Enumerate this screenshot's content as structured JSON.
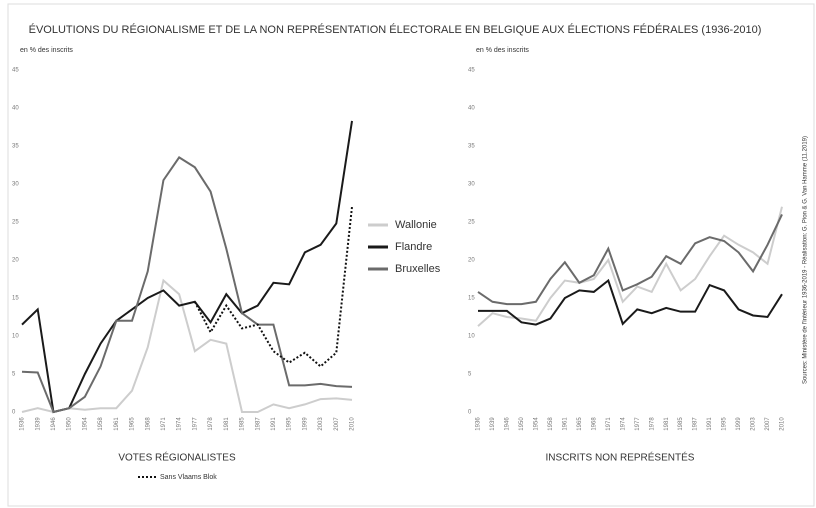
{
  "title": "ÉVOLUTIONS DU RÉGIONALISME ET DE LA NON REPRÉSENTATION ÉLECTORALE EN BELGIQUE AUX ÉLECTIONS FÉDÉRALES (1936-2010)",
  "source": "Sources: Ministère de l'Intérieur 1936-2019 - Réalisation: G. Pion & G. Van Hamme (11.2019)",
  "chart_data": [
    {
      "type": "line",
      "title": "VOTES RÉGIONALISTES",
      "y_label": "en % des inscrits",
      "categories": [
        "1936",
        "1939",
        "1946",
        "1950",
        "1954",
        "1958",
        "1961",
        "1965",
        "1968",
        "1971",
        "1974",
        "1977",
        "1978",
        "1981",
        "1985",
        "1987",
        "1991",
        "1995",
        "1999",
        "2003",
        "2007",
        "2010"
      ],
      "ylim": [
        0,
        45
      ],
      "yticks": [
        0,
        5,
        10,
        15,
        20,
        25,
        30,
        35,
        40,
        45
      ],
      "series": [
        {
          "name": "Wallonie",
          "color": "#cdcdcd",
          "values": [
            0,
            0.5,
            0,
            0.5,
            0.3,
            0.5,
            0.5,
            2.8,
            8.5,
            17.3,
            15.5,
            8,
            9.5,
            9,
            0,
            0,
            1,
            0.5,
            1,
            1.7,
            1.8,
            1.6
          ]
        },
        {
          "name": "Flandre",
          "color": "#1a1a1a",
          "values": [
            11.5,
            13.5,
            0,
            0.5,
            5,
            9,
            12,
            13.5,
            15,
            16,
            14,
            14.5,
            11.8,
            15.5,
            13,
            14,
            17,
            16.8,
            21,
            22,
            24.8,
            38.3
          ]
        },
        {
          "name": "Bruxelles",
          "color": "#6b6b6b",
          "values": [
            5.3,
            5.2,
            0,
            0.5,
            2,
            6,
            12,
            12,
            18.5,
            30.5,
            33.5,
            32.2,
            29,
            21.5,
            13,
            11.5,
            11.5,
            3.5,
            3.5,
            3.7,
            3.4,
            3.3
          ]
        },
        {
          "name": "Sans Vlaams Blok",
          "color": "#111111",
          "dash": "2,2",
          "values": [
            null,
            null,
            null,
            null,
            null,
            null,
            null,
            null,
            null,
            null,
            null,
            14.5,
            10.5,
            14,
            11,
            11.5,
            8,
            6.5,
            7.8,
            6,
            7.8,
            27
          ]
        }
      ]
    },
    {
      "type": "line",
      "title": "INSCRITS NON REPRÉSENTÉS",
      "y_label": "en % des inscrits",
      "categories": [
        "1936",
        "1939",
        "1946",
        "1950",
        "1954",
        "1958",
        "1961",
        "1965",
        "1968",
        "1971",
        "1974",
        "1977",
        "1978",
        "1981",
        "1985",
        "1987",
        "1991",
        "1995",
        "1999",
        "2003",
        "2007",
        "2010"
      ],
      "ylim": [
        0,
        45
      ],
      "yticks": [
        0,
        5,
        10,
        15,
        20,
        25,
        30,
        35,
        40,
        45
      ],
      "series": [
        {
          "color": "#cdcdcd",
          "values": [
            11.3,
            13,
            12.5,
            12.3,
            12,
            15,
            17.3,
            17,
            17.5,
            20,
            14.5,
            16.5,
            15.8,
            19.5,
            16,
            17.5,
            20.5,
            23.2,
            22,
            21,
            19.5,
            27
          ]
        },
        {
          "color": "#1a1a1a",
          "values": [
            13.3,
            13.3,
            13.3,
            11.8,
            11.5,
            12.3,
            15,
            16,
            15.8,
            17.3,
            11.6,
            13.5,
            13,
            13.7,
            13.2,
            13.2,
            16.7,
            16,
            13.5,
            12.7,
            12.5,
            15.5
          ]
        },
        {
          "color": "#6b6b6b",
          "values": [
            15.8,
            14.5,
            14.2,
            14.2,
            14.5,
            17.5,
            19.7,
            17,
            18,
            21.5,
            16,
            16.8,
            17.8,
            20.5,
            19.5,
            22.2,
            23,
            22.5,
            21,
            18.5,
            22,
            26
          ]
        }
      ]
    }
  ]
}
